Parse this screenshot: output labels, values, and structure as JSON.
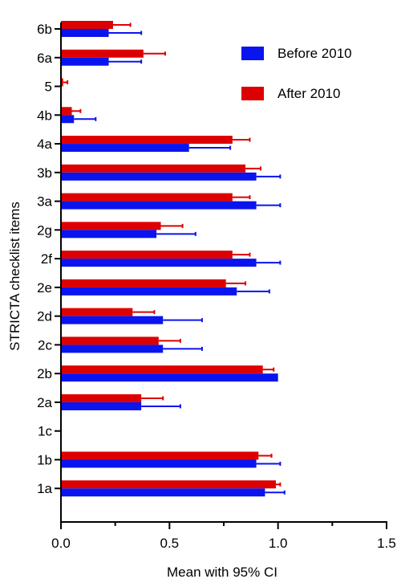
{
  "chart_data": {
    "type": "bar",
    "orientation": "horizontal",
    "xlabel": "Mean with 95% CI",
    "ylabel": "STRICTA checklist items",
    "xlim": [
      0,
      1.5
    ],
    "xticks": [
      "0.0",
      "0.5",
      "1.0",
      "1.5"
    ],
    "x_tick_values": [
      0,
      0.5,
      1.0,
      1.5
    ],
    "categories": [
      "6b",
      "6a",
      "5",
      "4b",
      "4a",
      "3b",
      "3a",
      "2g",
      "2f",
      "2e",
      "2d",
      "2c",
      "2b",
      "2a",
      "1c",
      "1b",
      "1a"
    ],
    "legend_position": "top-right",
    "series": [
      {
        "name": "After 2010",
        "color": "#dd0000",
        "values": [
          0.24,
          0.38,
          0.01,
          0.05,
          0.79,
          0.85,
          0.79,
          0.46,
          0.79,
          0.76,
          0.33,
          0.45,
          0.93,
          0.37,
          0,
          0.91,
          0.99
        ],
        "ci_upper": [
          0.32,
          0.48,
          0.03,
          0.09,
          0.87,
          0.92,
          0.87,
          0.56,
          0.87,
          0.85,
          0.43,
          0.55,
          0.98,
          0.47,
          0,
          0.97,
          1.01
        ]
      },
      {
        "name": "Before 2010",
        "color": "#0a14ee",
        "values": [
          0.22,
          0.22,
          0,
          0.06,
          0.59,
          0.9,
          0.9,
          0.44,
          0.9,
          0.81,
          0.47,
          0.47,
          1.0,
          0.37,
          0,
          0.9,
          0.94
        ],
        "ci_upper": [
          0.37,
          0.37,
          0,
          0.16,
          0.78,
          1.01,
          1.01,
          0.62,
          1.01,
          0.96,
          0.65,
          0.65,
          1.0,
          0.55,
          0,
          1.01,
          1.03
        ]
      }
    ]
  }
}
